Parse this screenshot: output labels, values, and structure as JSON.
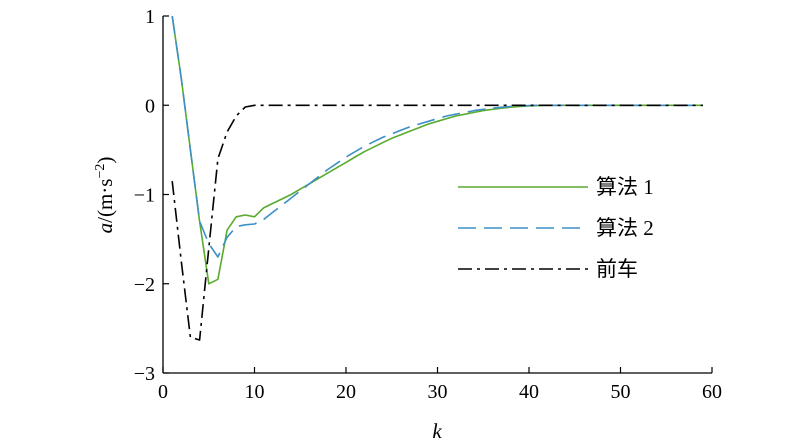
{
  "chart_data": {
    "type": "line",
    "xlabel_var": "k",
    "ylabel_var": "a",
    "ylabel_unit": "/(m·s",
    "ylabel_exp": "−2",
    "ylabel_close": ")",
    "xlim": [
      0,
      60
    ],
    "ylim": [
      -3,
      1
    ],
    "x_ticks": [
      0,
      10,
      20,
      30,
      40,
      50,
      60
    ],
    "x_tick_labels": [
      "0",
      "10",
      "20",
      "30",
      "40",
      "50",
      "60"
    ],
    "y_ticks": [
      1,
      0,
      -1,
      -2,
      -3
    ],
    "y_tick_labels": [
      "1",
      "0",
      "−1",
      "−2",
      "−3"
    ],
    "grid": false,
    "legend_position": "right-middle",
    "series": [
      {
        "name": "算法 1",
        "color": "#5aaa2e",
        "style": "solid",
        "x": [
          1,
          2,
          3,
          4,
          5,
          6,
          7,
          8,
          9,
          10,
          11,
          12,
          13,
          14,
          15,
          16,
          17,
          18,
          19,
          20,
          21,
          22,
          23,
          24,
          25,
          26,
          27,
          28,
          29,
          30,
          31,
          32,
          33,
          34,
          35,
          36,
          37,
          38,
          39,
          40,
          41,
          42,
          43,
          44,
          45,
          46,
          47,
          48,
          49,
          50,
          51,
          52,
          53,
          54,
          55,
          56,
          57,
          58,
          59
        ],
        "y": [
          1.0,
          0.3,
          -0.5,
          -1.3,
          -2.0,
          -1.95,
          -1.4,
          -1.25,
          -1.23,
          -1.25,
          -1.15,
          -1.1,
          -1.05,
          -1.0,
          -0.94,
          -0.88,
          -0.82,
          -0.76,
          -0.7,
          -0.64,
          -0.58,
          -0.52,
          -0.47,
          -0.42,
          -0.37,
          -0.33,
          -0.29,
          -0.25,
          -0.21,
          -0.18,
          -0.15,
          -0.12,
          -0.1,
          -0.08,
          -0.06,
          -0.045,
          -0.033,
          -0.022,
          -0.014,
          -0.008,
          -0.004,
          0.0,
          0.0,
          0.0,
          0.0,
          0.0,
          0.0,
          0.0,
          0.0,
          0.0,
          0.0,
          0.0,
          0.0,
          0.0,
          0.0,
          0.0,
          0.0,
          0.0,
          0.0
        ]
      },
      {
        "name": "算法 2",
        "color": "#3d8fc6",
        "style": "dashed",
        "x": [
          1,
          2,
          3,
          4,
          5,
          6,
          7,
          8,
          9,
          10,
          11,
          12,
          13,
          14,
          15,
          16,
          17,
          18,
          19,
          20,
          21,
          22,
          23,
          24,
          25,
          26,
          27,
          28,
          29,
          30,
          31,
          32,
          33,
          34,
          35,
          36,
          37,
          38,
          39,
          40,
          41,
          42,
          43,
          44,
          45,
          46,
          47,
          48,
          49,
          50,
          51,
          52,
          53,
          54,
          55,
          56,
          57,
          58,
          59
        ],
        "y": [
          1.0,
          0.3,
          -0.5,
          -1.3,
          -1.55,
          -1.7,
          -1.48,
          -1.36,
          -1.34,
          -1.33,
          -1.28,
          -1.2,
          -1.12,
          -1.04,
          -0.96,
          -0.88,
          -0.8,
          -0.72,
          -0.65,
          -0.58,
          -0.52,
          -0.46,
          -0.41,
          -0.36,
          -0.32,
          -0.28,
          -0.24,
          -0.21,
          -0.18,
          -0.15,
          -0.12,
          -0.1,
          -0.08,
          -0.06,
          -0.045,
          -0.033,
          -0.022,
          -0.014,
          -0.008,
          -0.004,
          0.0,
          0.0,
          0.0,
          0.0,
          0.0,
          0.0,
          0.0,
          0.0,
          0.0,
          0.0,
          0.0,
          0.0,
          0.0,
          0.0,
          0.0,
          0.0,
          0.0,
          0.0,
          0.0
        ]
      },
      {
        "name": "前车",
        "color": "#000000",
        "style": "dashdot",
        "x": [
          1,
          2,
          3,
          4,
          5,
          6,
          7,
          8,
          9,
          10,
          11,
          12,
          13,
          14,
          15,
          16,
          17,
          18,
          19,
          20,
          21,
          22,
          23,
          24,
          25,
          26,
          27,
          28,
          29,
          30,
          31,
          32,
          33,
          34,
          35,
          36,
          37,
          38,
          39,
          40,
          41,
          42,
          43,
          44,
          45,
          46,
          47,
          48,
          49,
          50,
          51,
          52,
          53,
          54,
          55,
          56,
          57,
          58,
          59
        ],
        "y": [
          -0.85,
          -1.75,
          -2.6,
          -2.63,
          -1.6,
          -0.6,
          -0.3,
          -0.12,
          -0.02,
          0.0,
          0.0,
          0.0,
          0.0,
          0.0,
          0.0,
          0.0,
          0.0,
          0.0,
          0.0,
          0.0,
          0.0,
          0.0,
          0.0,
          0.0,
          0.0,
          0.0,
          0.0,
          0.0,
          0.0,
          0.0,
          0.0,
          0.0,
          0.0,
          0.0,
          0.0,
          0.0,
          0.0,
          0.0,
          0.0,
          0.0,
          0.0,
          0.0,
          0.0,
          0.0,
          0.0,
          0.0,
          0.0,
          0.0,
          0.0,
          0.0,
          0.0,
          0.0,
          0.0,
          0.0,
          0.0,
          0.0,
          0.0,
          0.0,
          0.0
        ]
      }
    ]
  }
}
